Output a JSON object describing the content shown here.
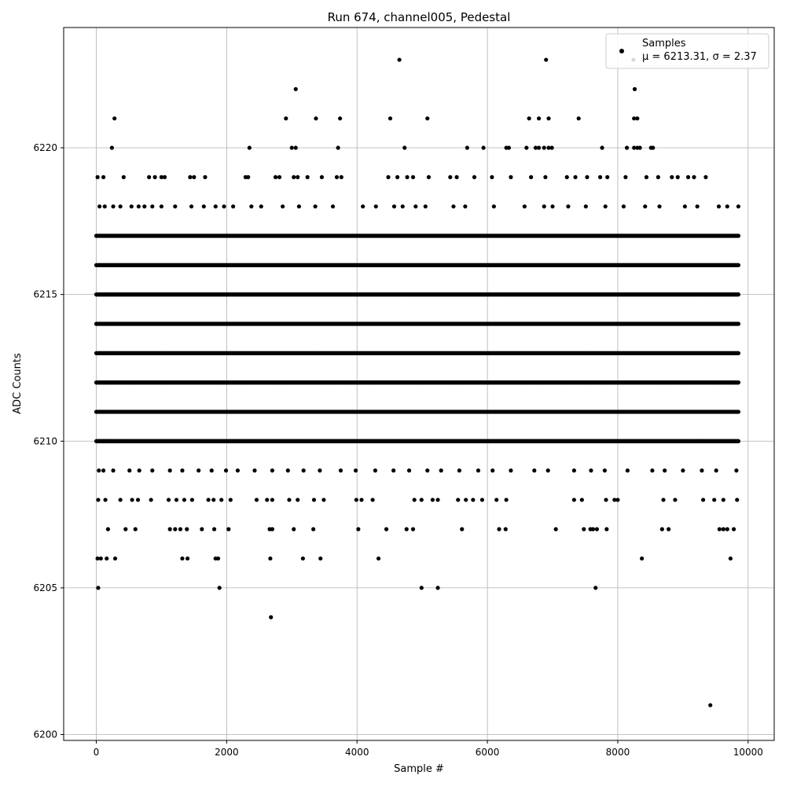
{
  "chart_data": {
    "type": "scatter",
    "title": "Run 674, channel005, Pedestal",
    "xlabel": "Sample #",
    "ylabel": "ADC Counts",
    "xlim": [
      -500,
      10400
    ],
    "ylim": [
      6199.8,
      6224.1
    ],
    "x_ticks": [
      0,
      2000,
      4000,
      6000,
      8000,
      10000
    ],
    "y_ticks": [
      6200,
      6205,
      6210,
      6215,
      6220
    ],
    "grid": true,
    "legend_position": "top-right",
    "series": [
      {
        "name": "Samples",
        "color": "#000000",
        "marker": "circle",
        "n_samples": 10000,
        "dense_levels": [
          {
            "y": 6210,
            "x_range": [
              0,
              9860
            ]
          },
          {
            "y": 6211,
            "x_range": [
              0,
              9860
            ]
          },
          {
            "y": 6212,
            "x_range": [
              0,
              9860
            ]
          },
          {
            "y": 6213,
            "x_range": [
              0,
              9860
            ]
          },
          {
            "y": 6214,
            "x_range": [
              0,
              9860
            ]
          },
          {
            "y": 6215,
            "x_range": [
              0,
              9860
            ]
          },
          {
            "y": 6216,
            "x_range": [
              0,
              9860
            ]
          },
          {
            "y": 6217,
            "x_range": [
              0,
              9860
            ]
          }
        ],
        "points": [
          [
            30,
            6205
          ],
          [
            1890,
            6205
          ],
          [
            4990,
            6205
          ],
          [
            5240,
            6205
          ],
          [
            7660,
            6205
          ],
          [
            2680,
            6204
          ],
          [
            9420,
            6201
          ],
          [
            4650,
            6223
          ],
          [
            6900,
            6223
          ],
          [
            8240,
            6223
          ],
          [
            3060,
            6222
          ],
          [
            8260,
            6222
          ],
          [
            280,
            6221
          ],
          [
            2910,
            6221
          ],
          [
            3370,
            6221
          ],
          [
            3740,
            6221
          ],
          [
            4510,
            6221
          ],
          [
            5080,
            6221
          ],
          [
            6640,
            6221
          ],
          [
            6790,
            6221
          ],
          [
            6940,
            6221
          ],
          [
            7400,
            6221
          ],
          [
            8250,
            6221
          ],
          [
            8300,
            6221
          ],
          [
            240,
            6220
          ],
          [
            2350,
            6220
          ],
          [
            3000,
            6220
          ],
          [
            3060,
            6220
          ],
          [
            3710,
            6220
          ],
          [
            4730,
            6220
          ],
          [
            5690,
            6220
          ],
          [
            5940,
            6220
          ],
          [
            6290,
            6220
          ],
          [
            6330,
            6220
          ],
          [
            6600,
            6220
          ],
          [
            6740,
            6220
          ],
          [
            6790,
            6220
          ],
          [
            6870,
            6220
          ],
          [
            6940,
            6220
          ],
          [
            6990,
            6220
          ],
          [
            7760,
            6220
          ],
          [
            8140,
            6220
          ],
          [
            8250,
            6220
          ],
          [
            8300,
            6220
          ],
          [
            8340,
            6220
          ],
          [
            8510,
            6220
          ],
          [
            8540,
            6220
          ],
          [
            20,
            6206
          ],
          [
            70,
            6206
          ],
          [
            160,
            6206
          ],
          [
            290,
            6206
          ],
          [
            1320,
            6206
          ],
          [
            1400,
            6206
          ],
          [
            1830,
            6206
          ],
          [
            1870,
            6206
          ],
          [
            2670,
            6206
          ],
          [
            3170,
            6206
          ],
          [
            3440,
            6206
          ],
          [
            4330,
            6206
          ],
          [
            8370,
            6206
          ],
          [
            9730,
            6206
          ],
          [
            180,
            6207
          ],
          [
            450,
            6207
          ],
          [
            600,
            6207
          ],
          [
            1130,
            6207
          ],
          [
            1210,
            6207
          ],
          [
            1290,
            6207
          ],
          [
            1390,
            6207
          ],
          [
            1620,
            6207
          ],
          [
            1810,
            6207
          ],
          [
            2030,
            6207
          ],
          [
            2660,
            6207
          ],
          [
            2700,
            6207
          ],
          [
            3030,
            6207
          ],
          [
            3330,
            6207
          ],
          [
            4020,
            6207
          ],
          [
            4450,
            6207
          ],
          [
            4760,
            6207
          ],
          [
            4860,
            6207
          ],
          [
            5610,
            6207
          ],
          [
            6180,
            6207
          ],
          [
            6280,
            6207
          ],
          [
            7050,
            6207
          ],
          [
            7480,
            6207
          ],
          [
            7580,
            6207
          ],
          [
            7620,
            6207
          ],
          [
            7680,
            6207
          ],
          [
            7830,
            6207
          ],
          [
            8680,
            6207
          ],
          [
            8780,
            6207
          ],
          [
            9560,
            6207
          ],
          [
            9620,
            6207
          ],
          [
            9680,
            6207
          ],
          [
            9780,
            6207
          ],
          [
            30,
            6208
          ],
          [
            140,
            6208
          ],
          [
            370,
            6208
          ],
          [
            550,
            6208
          ],
          [
            640,
            6208
          ],
          [
            840,
            6208
          ],
          [
            1110,
            6208
          ],
          [
            1230,
            6208
          ],
          [
            1350,
            6208
          ],
          [
            1470,
            6208
          ],
          [
            1720,
            6208
          ],
          [
            1800,
            6208
          ],
          [
            1920,
            6208
          ],
          [
            2060,
            6208
          ],
          [
            2460,
            6208
          ],
          [
            2620,
            6208
          ],
          [
            2700,
            6208
          ],
          [
            2960,
            6208
          ],
          [
            3090,
            6208
          ],
          [
            3340,
            6208
          ],
          [
            3490,
            6208
          ],
          [
            3990,
            6208
          ],
          [
            4070,
            6208
          ],
          [
            4240,
            6208
          ],
          [
            4880,
            6208
          ],
          [
            4990,
            6208
          ],
          [
            5160,
            6208
          ],
          [
            5240,
            6208
          ],
          [
            5550,
            6208
          ],
          [
            5670,
            6208
          ],
          [
            5780,
            6208
          ],
          [
            5920,
            6208
          ],
          [
            6140,
            6208
          ],
          [
            6290,
            6208
          ],
          [
            7330,
            6208
          ],
          [
            7450,
            6208
          ],
          [
            7820,
            6208
          ],
          [
            7950,
            6208
          ],
          [
            8000,
            6208
          ],
          [
            8700,
            6208
          ],
          [
            8880,
            6208
          ],
          [
            9310,
            6208
          ],
          [
            9480,
            6208
          ],
          [
            9620,
            6208
          ],
          [
            9830,
            6208
          ],
          [
            20,
            6219
          ],
          [
            110,
            6219
          ],
          [
            420,
            6219
          ],
          [
            810,
            6219
          ],
          [
            900,
            6219
          ],
          [
            1000,
            6219
          ],
          [
            1050,
            6219
          ],
          [
            1440,
            6219
          ],
          [
            1500,
            6219
          ],
          [
            1670,
            6219
          ],
          [
            2290,
            6219
          ],
          [
            2330,
            6219
          ],
          [
            2750,
            6219
          ],
          [
            2810,
            6219
          ],
          [
            3030,
            6219
          ],
          [
            3090,
            6219
          ],
          [
            3240,
            6219
          ],
          [
            3460,
            6219
          ],
          [
            3690,
            6219
          ],
          [
            3760,
            6219
          ],
          [
            4480,
            6219
          ],
          [
            4620,
            6219
          ],
          [
            4770,
            6219
          ],
          [
            4860,
            6219
          ],
          [
            5100,
            6219
          ],
          [
            5430,
            6219
          ],
          [
            5530,
            6219
          ],
          [
            5800,
            6219
          ],
          [
            6070,
            6219
          ],
          [
            6360,
            6219
          ],
          [
            6670,
            6219
          ],
          [
            6890,
            6219
          ],
          [
            7220,
            6219
          ],
          [
            7350,
            6219
          ],
          [
            7530,
            6219
          ],
          [
            7730,
            6219
          ],
          [
            7840,
            6219
          ],
          [
            8120,
            6219
          ],
          [
            8440,
            6219
          ],
          [
            8620,
            6219
          ],
          [
            8830,
            6219
          ],
          [
            8920,
            6219
          ],
          [
            9080,
            6219
          ],
          [
            9170,
            6219
          ],
          [
            9350,
            6219
          ],
          [
            50,
            6218
          ],
          [
            130,
            6218
          ],
          [
            260,
            6218
          ],
          [
            370,
            6218
          ],
          [
            540,
            6218
          ],
          [
            650,
            6218
          ],
          [
            740,
            6218
          ],
          [
            860,
            6218
          ],
          [
            1000,
            6218
          ],
          [
            1210,
            6218
          ],
          [
            1460,
            6218
          ],
          [
            1650,
            6218
          ],
          [
            1830,
            6218
          ],
          [
            1960,
            6218
          ],
          [
            2100,
            6218
          ],
          [
            2380,
            6218
          ],
          [
            2530,
            6218
          ],
          [
            2860,
            6218
          ],
          [
            3110,
            6218
          ],
          [
            3360,
            6218
          ],
          [
            3630,
            6218
          ],
          [
            4090,
            6218
          ],
          [
            4290,
            6218
          ],
          [
            4570,
            6218
          ],
          [
            4700,
            6218
          ],
          [
            4900,
            6218
          ],
          [
            5050,
            6218
          ],
          [
            5480,
            6218
          ],
          [
            5660,
            6218
          ],
          [
            6100,
            6218
          ],
          [
            6570,
            6218
          ],
          [
            6870,
            6218
          ],
          [
            7000,
            6218
          ],
          [
            7240,
            6218
          ],
          [
            7510,
            6218
          ],
          [
            7810,
            6218
          ],
          [
            8090,
            6218
          ],
          [
            8420,
            6218
          ],
          [
            8640,
            6218
          ],
          [
            9030,
            6218
          ],
          [
            9220,
            6218
          ],
          [
            9550,
            6218
          ],
          [
            9680,
            6218
          ],
          [
            9850,
            6218
          ],
          [
            40,
            6209
          ],
          [
            110,
            6209
          ],
          [
            260,
            6209
          ],
          [
            510,
            6209
          ],
          [
            660,
            6209
          ],
          [
            860,
            6209
          ],
          [
            1130,
            6209
          ],
          [
            1320,
            6209
          ],
          [
            1570,
            6209
          ],
          [
            1770,
            6209
          ],
          [
            1990,
            6209
          ],
          [
            2170,
            6209
          ],
          [
            2430,
            6209
          ],
          [
            2700,
            6209
          ],
          [
            2940,
            6209
          ],
          [
            3180,
            6209
          ],
          [
            3430,
            6209
          ],
          [
            3750,
            6209
          ],
          [
            3980,
            6209
          ],
          [
            4280,
            6209
          ],
          [
            4560,
            6209
          ],
          [
            4800,
            6209
          ],
          [
            5080,
            6209
          ],
          [
            5290,
            6209
          ],
          [
            5570,
            6209
          ],
          [
            5860,
            6209
          ],
          [
            6080,
            6209
          ],
          [
            6360,
            6209
          ],
          [
            6720,
            6209
          ],
          [
            6930,
            6209
          ],
          [
            7330,
            6209
          ],
          [
            7590,
            6209
          ],
          [
            7800,
            6209
          ],
          [
            8150,
            6209
          ],
          [
            8530,
            6209
          ],
          [
            8720,
            6209
          ],
          [
            9000,
            6209
          ],
          [
            9290,
            6209
          ],
          [
            9510,
            6209
          ],
          [
            9820,
            6209
          ]
        ]
      }
    ],
    "legend": {
      "entries": [
        "Samples",
        "μ = 6213.31, σ = 2.37"
      ]
    }
  }
}
